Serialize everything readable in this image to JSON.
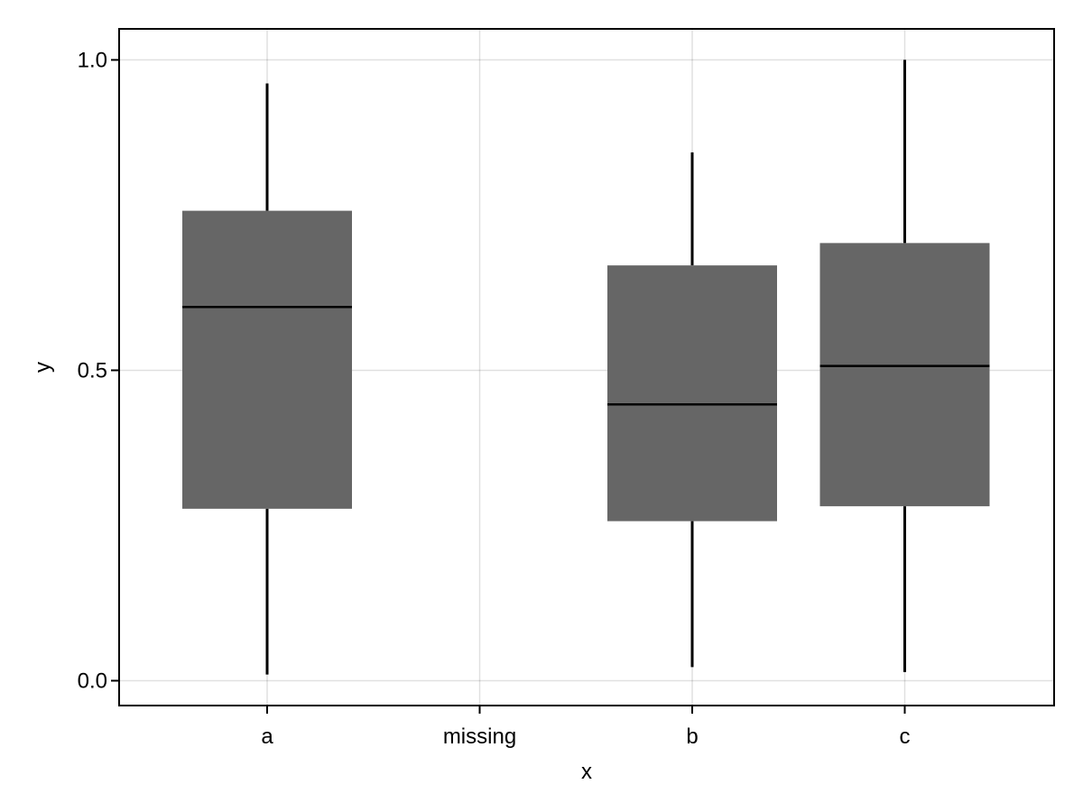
{
  "chart_data": {
    "type": "box",
    "xlabel": "x",
    "ylabel": "y",
    "categories": [
      "a",
      "missing",
      "b",
      "c"
    ],
    "ylim": [
      -0.04,
      1.05
    ],
    "yticks": [
      0.0,
      0.5,
      1.0
    ],
    "ytick_labels": [
      "0.0",
      "0.5",
      "1.0"
    ],
    "grid": true,
    "box_color": "#666666",
    "boxes": [
      {
        "category": "a",
        "min": 0.01,
        "q1": 0.277,
        "median": 0.602,
        "q3": 0.757,
        "max": 0.962
      },
      {
        "category": "b",
        "min": 0.022,
        "q1": 0.257,
        "median": 0.445,
        "q3": 0.669,
        "max": 0.851
      },
      {
        "category": "c",
        "min": 0.014,
        "q1": 0.281,
        "median": 0.507,
        "q3": 0.705,
        "max": 1.0
      }
    ]
  }
}
